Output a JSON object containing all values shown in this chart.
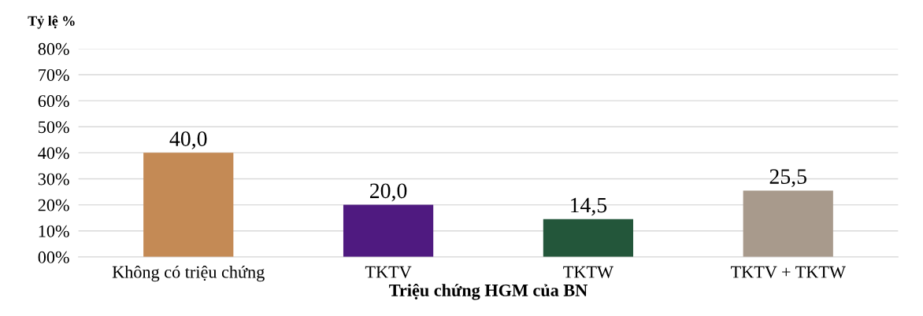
{
  "chart_data": {
    "type": "bar",
    "ylabel": "Tỷ lệ %",
    "xlabel": "Triệu chứng HGM của BN",
    "categories": [
      "Không có triệu chứng",
      "TKTV",
      "TKTW",
      "TKTV + TKTW"
    ],
    "values": [
      40.0,
      20.0,
      14.5,
      25.5
    ],
    "colors": [
      "#c48a55",
      "#4f1a80",
      "#23563a",
      "#a89a8c"
    ],
    "value_labels": [
      "40,0",
      "20,0",
      "14,5",
      "25,5"
    ],
    "ylim": [
      0,
      80
    ],
    "yticks": [
      {
        "value": 0,
        "label": "00%"
      },
      {
        "value": 10,
        "label": "10%"
      },
      {
        "value": 20,
        "label": "20%"
      },
      {
        "value": 30,
        "label": "30%"
      },
      {
        "value": 40,
        "label": "40%"
      },
      {
        "value": 50,
        "label": "50%"
      },
      {
        "value": 60,
        "label": "60%"
      },
      {
        "value": 70,
        "label": "70%"
      },
      {
        "value": 80,
        "label": "80%"
      }
    ],
    "grid": "y",
    "legend": false
  }
}
